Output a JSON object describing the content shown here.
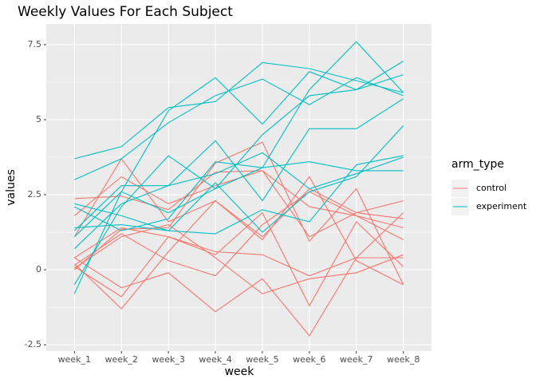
{
  "chart_data": {
    "type": "line",
    "title": "Weekly Values For Each Subject",
    "x_label": "week",
    "y_label": "values",
    "legend_title": "arm_type",
    "categories": [
      "week_1",
      "week_2",
      "week_3",
      "week_4",
      "week_5",
      "week_6",
      "week_7",
      "week_8"
    ],
    "ylim": [
      -2.71,
      8.19
    ],
    "yticks": [
      -2.5,
      0.0,
      2.5,
      5.0,
      7.5
    ],
    "grid": true,
    "series": [
      {
        "name": "control",
        "color": "#F8766D",
        "lines": [
          [
            0.2,
            -1.3,
            0.6,
            2.3,
            1.0,
            3.1,
            0.3,
            -0.5
          ],
          [
            2.37,
            2.45,
            2.0,
            3.25,
            3.3,
            2.1,
            1.8,
            1.0
          ],
          [
            1.1,
            3.7,
            1.6,
            2.3,
            1.1,
            2.7,
            1.9,
            1.7
          ],
          [
            0.1,
            -0.9,
            1.1,
            0.5,
            1.9,
            -1.2,
            1.6,
            0.1
          ],
          [
            0.05,
            1.1,
            1.5,
            0.4,
            -0.8,
            -0.3,
            -0.1,
            0.5
          ],
          [
            0.0,
            1.35,
            1.4,
            3.55,
            4.25,
            0.95,
            2.7,
            -0.5
          ],
          [
            0.4,
            -0.6,
            -0.1,
            -1.4,
            -0.3,
            -2.2,
            0.4,
            0.4
          ],
          [
            1.8,
            3.1,
            2.2,
            2.8,
            3.3,
            1.1,
            1.9,
            2.3
          ],
          [
            0.4,
            1.4,
            1.1,
            0.6,
            0.5,
            -0.2,
            0.4,
            1.9
          ],
          [
            0.15,
            1.2,
            0.3,
            -0.2,
            1.5,
            2.6,
            1.8,
            1.4
          ]
        ]
      },
      {
        "name": "experiment",
        "color": "#00BFC4",
        "lines": [
          [
            3.7,
            4.1,
            5.4,
            5.6,
            6.9,
            6.7,
            6.3,
            5.9
          ],
          [
            3.0,
            3.7,
            4.9,
            5.8,
            6.35,
            5.5,
            6.4,
            5.8
          ],
          [
            1.1,
            2.6,
            5.3,
            6.4,
            4.85,
            6.6,
            6.0,
            6.95
          ],
          [
            -0.5,
            2.1,
            3.8,
            2.7,
            4.5,
            5.8,
            6.0,
            6.5
          ],
          [
            0.7,
            2.2,
            2.8,
            4.3,
            2.3,
            4.7,
            4.7,
            5.7
          ],
          [
            2.1,
            1.3,
            1.7,
            3.6,
            3.4,
            6.0,
            7.6,
            5.9
          ],
          [
            -0.8,
            2.6,
            1.9,
            2.7,
            3.4,
            3.6,
            3.3,
            3.3
          ],
          [
            1.4,
            1.5,
            1.3,
            1.2,
            2.0,
            1.6,
            3.5,
            3.8
          ],
          [
            2.2,
            1.8,
            1.3,
            2.9,
            1.25,
            2.6,
            3.1,
            4.8
          ],
          [
            1.3,
            2.8,
            2.8,
            3.2,
            3.9,
            2.7,
            3.2,
            3.75
          ]
        ]
      }
    ]
  }
}
